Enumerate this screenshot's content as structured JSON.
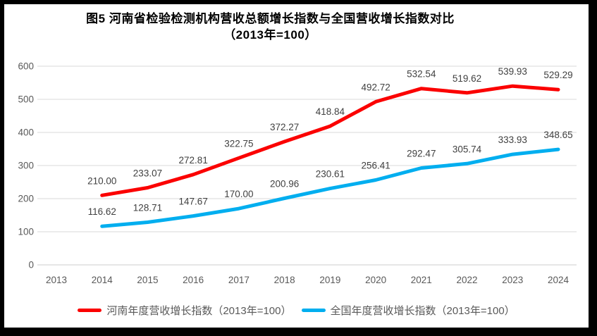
{
  "title": {
    "line1": "图5  河南省检验检测机构营收总额增长指数与全国营收增长指数对比",
    "line2": "（2013年=100）"
  },
  "chart_data": {
    "type": "line",
    "categories": [
      "2013",
      "2014",
      "2015",
      "2016",
      "2017",
      "2018",
      "2019",
      "2020",
      "2021",
      "2022",
      "2023",
      "2024"
    ],
    "series": [
      {
        "name": "河南年度营收增长指数（2013年=100）",
        "color": "#FB0000",
        "start_index": 1,
        "values": [
          210.0,
          233.07,
          272.81,
          322.75,
          372.27,
          418.84,
          492.72,
          532.54,
          519.62,
          539.93,
          529.29
        ]
      },
      {
        "name": "全国年度营收增长指数（2013年=100）",
        "color": "#00AEEF",
        "start_index": 1,
        "values": [
          116.62,
          128.71,
          147.67,
          170.0,
          200.96,
          230.61,
          256.41,
          292.47,
          305.74,
          333.93,
          348.65
        ]
      }
    ],
    "yticks": [
      0,
      100,
      200,
      300,
      400,
      500,
      600
    ],
    "ylim": [
      0,
      600
    ],
    "xlabel": "",
    "ylabel": "",
    "grid": "horizontal",
    "data_labels": "two-decimals, above points",
    "legend_position": "bottom"
  },
  "style": {
    "gridline_color": "#E0E0E0",
    "zero_line_color": "#D6D6D6",
    "axis_text_color": "#595959",
    "data_label_color": "#404040",
    "frame_color": "#000000"
  }
}
